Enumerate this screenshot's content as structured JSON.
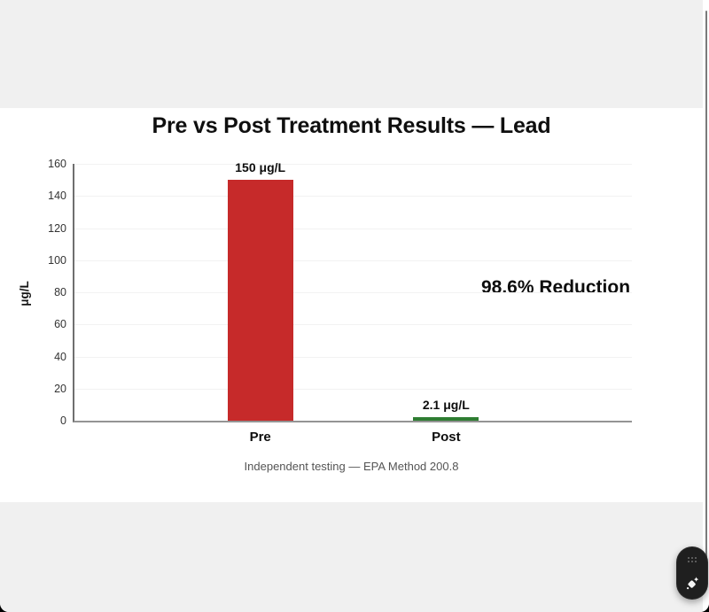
{
  "page": {
    "background_color": "#f0f0f0",
    "card_background": "#ffffff"
  },
  "chart_data": {
    "type": "bar",
    "title": "Pre vs Post Treatment Results — Lead",
    "categories": [
      "Pre",
      "Post"
    ],
    "values": [
      150,
      2.1
    ],
    "value_labels": [
      "150 μg/L",
      "2.1 μg/L"
    ],
    "bar_colors": [
      "#c62a2a",
      "#2e7d32"
    ],
    "xlabel": "",
    "ylabel": "μg/L",
    "ylim": [
      0,
      160
    ],
    "yticks": [
      0,
      20,
      40,
      60,
      80,
      100,
      120,
      140,
      160
    ],
    "grid": true,
    "legend": false,
    "annotation": "98.6% Reduction",
    "caption": "Independent testing — EPA Method 200.8"
  },
  "scrollbar": {
    "thumb_color": "#7a7a7a"
  },
  "floating_button": {
    "background": "#1f1f1f",
    "handle_icon": "drag-dots-icon",
    "main_icon": "sparkle-diamond-icon"
  }
}
